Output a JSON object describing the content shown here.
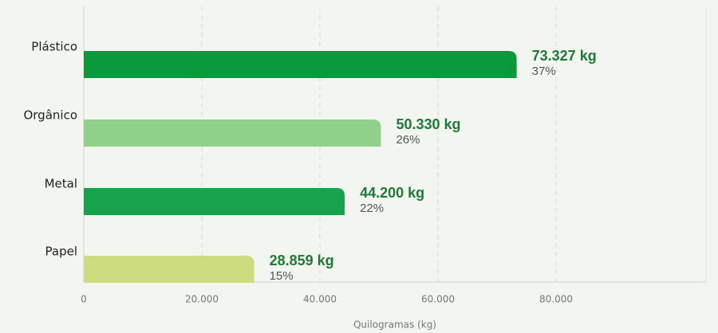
{
  "chart_data": {
    "type": "bar",
    "orientation": "horizontal",
    "categories": [
      "Plástico",
      "Orgânico",
      "Metal",
      "Papel"
    ],
    "values": [
      73327,
      50330,
      44200,
      28859
    ],
    "value_labels": [
      "73.327 kg",
      "50.330 kg",
      "44.200 kg",
      "28.859 kg"
    ],
    "share_labels": [
      "37%",
      "26%",
      "22%",
      "15%"
    ],
    "colors": [
      "#0a9a3c",
      "#8fd08a",
      "#17a24c",
      "#cddc7e"
    ],
    "xlabel": "Quilogramas (kg)",
    "xlim": [
      0,
      105400
    ],
    "xticks": [
      0,
      {
        "value": 20000,
        "label": "20.000"
      },
      {
        "value": 40000,
        "label": "40.000"
      },
      {
        "value": 60000,
        "label": "60.000"
      },
      {
        "value": 80000,
        "label": "80.000"
      }
    ],
    "grid": true
  }
}
